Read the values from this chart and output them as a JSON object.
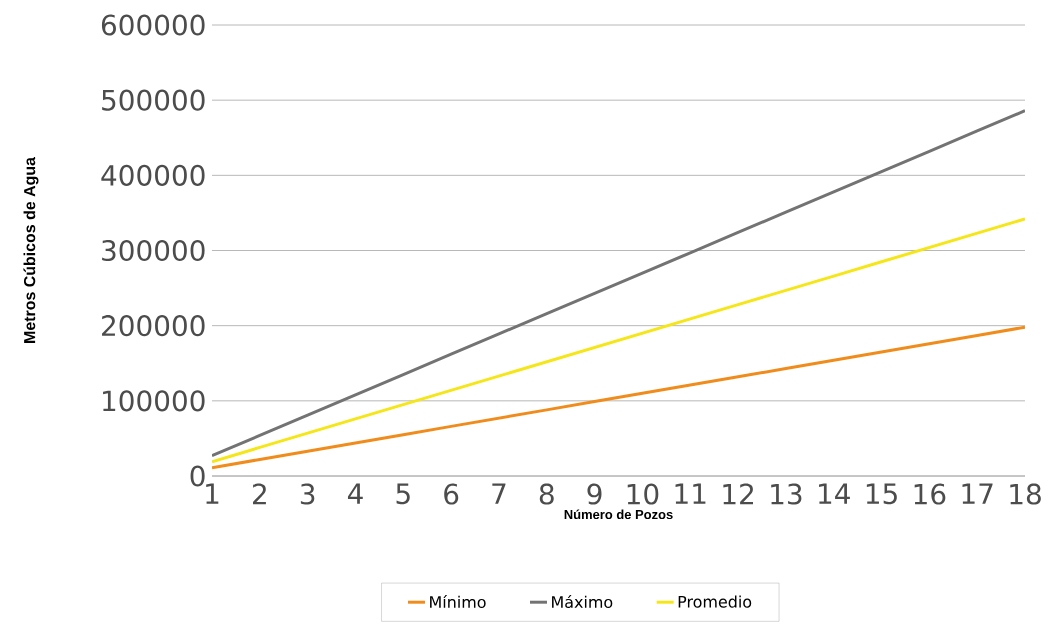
{
  "chart_data": {
    "type": "line",
    "xlabel": "Número de Pozos",
    "ylabel": "Metros Cúbicos de Agua",
    "categories": [
      "1",
      "2",
      "3",
      "4",
      "5",
      "6",
      "7",
      "8",
      "9",
      "10",
      "11",
      "12",
      "13",
      "14",
      "15",
      "16",
      "17",
      "18"
    ],
    "series": [
      {
        "name": "Mínimo",
        "color": "#f08c1c",
        "values": [
          11000,
          22000,
          33000,
          44000,
          55000,
          66000,
          77000,
          88000,
          99000,
          110000,
          121000,
          132000,
          143000,
          154000,
          165000,
          176000,
          187000,
          198000
        ]
      },
      {
        "name": "Máximo",
        "color": "#737373",
        "values": [
          27000,
          54000,
          81000,
          108000,
          135000,
          162000,
          189000,
          216000,
          243000,
          270000,
          297000,
          324000,
          351000,
          378000,
          405000,
          432000,
          459000,
          486000
        ]
      },
      {
        "name": "Promedio",
        "color": "#f5e61a",
        "values": [
          19000,
          38000,
          57000,
          76000,
          95000,
          114000,
          133000,
          152000,
          171000,
          190000,
          209000,
          228000,
          247000,
          266000,
          285000,
          304000,
          323000,
          342000
        ]
      }
    ],
    "ylim": [
      0,
      600000
    ],
    "yticks": [
      0,
      100000,
      200000,
      300000,
      400000,
      500000,
      600000
    ],
    "grid": "y",
    "legend": "bottom"
  }
}
